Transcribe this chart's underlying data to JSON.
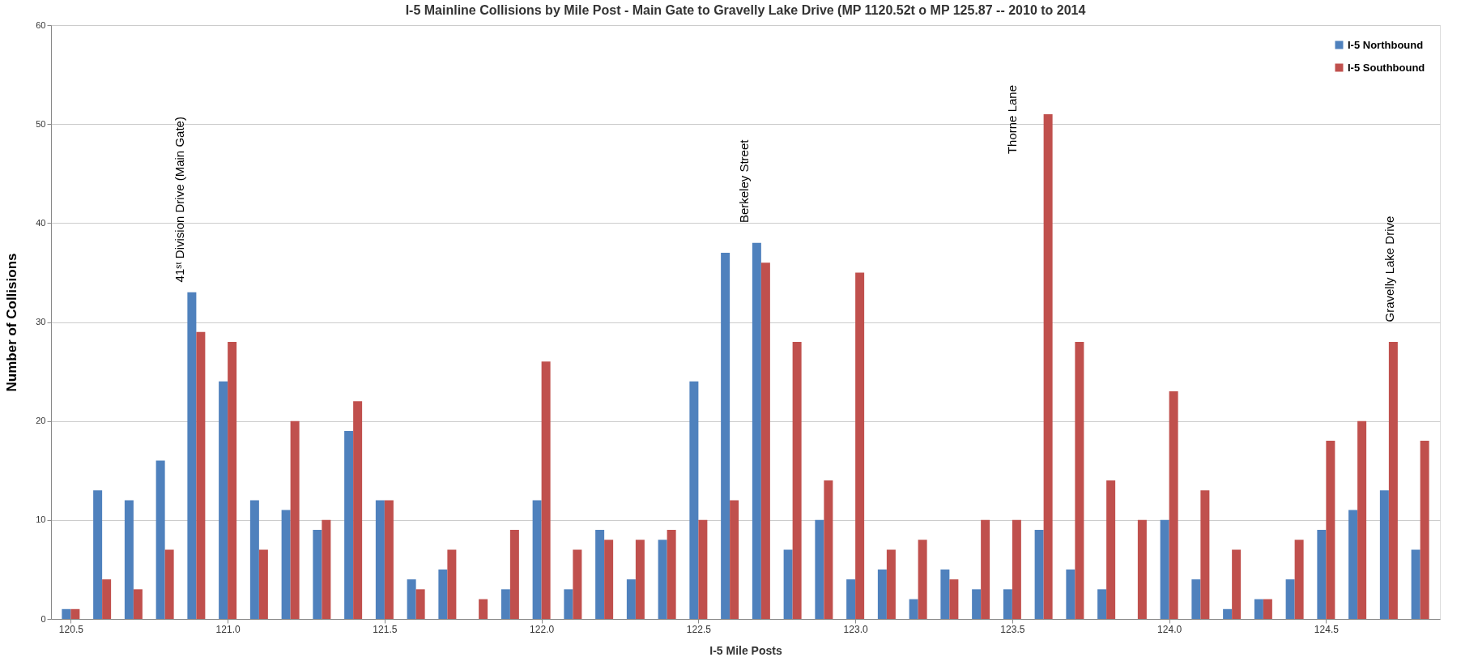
{
  "chart_data": {
    "type": "bar",
    "title": "I-5 Mainline Collisions by Mile Post - Main Gate to Gravelly Lake Drive  (MP 1120.52t o MP 125.87  --  2010 to 2014",
    "xlabel": "I-5 Mile Posts",
    "ylabel": "Number of Collisions",
    "x": [
      120.5,
      120.6,
      120.7,
      120.8,
      120.9,
      121.0,
      121.1,
      121.2,
      121.3,
      121.4,
      121.5,
      121.6,
      121.7,
      121.8,
      121.9,
      122.0,
      122.1,
      122.2,
      122.3,
      122.4,
      122.5,
      122.6,
      122.7,
      122.8,
      122.9,
      123.0,
      123.1,
      123.2,
      123.3,
      123.4,
      123.5,
      123.6,
      123.7,
      123.8,
      123.9,
      124.0,
      124.1,
      124.2,
      124.3,
      124.4,
      124.5,
      124.6,
      124.7,
      124.8
    ],
    "series": [
      {
        "name": "I-5 Northbound",
        "color": "#4f81bd",
        "values": [
          1,
          13,
          12,
          16,
          33,
          24,
          12,
          11,
          9,
          19,
          12,
          4,
          5,
          null,
          3,
          12,
          3,
          9,
          4,
          8,
          24,
          37,
          38,
          7,
          10,
          4,
          5,
          2,
          5,
          3,
          3,
          9,
          5,
          3,
          null,
          10,
          4,
          1,
          2,
          4,
          9,
          11,
          13,
          7
        ]
      },
      {
        "name": "I-5 Southbound",
        "color": "#c0504d",
        "values": [
          1,
          4,
          3,
          7,
          29,
          28,
          7,
          20,
          10,
          22,
          12,
          3,
          7,
          2,
          9,
          26,
          7,
          8,
          8,
          9,
          10,
          12,
          36,
          28,
          14,
          35,
          7,
          8,
          4,
          10,
          10,
          51,
          28,
          14,
          10,
          23,
          13,
          7,
          2,
          8,
          18,
          20,
          28,
          18
        ]
      }
    ],
    "xlim": [
      120.45,
      124.85
    ],
    "xticks": [
      120.5,
      {
        "value": 121,
        "label": "121.0"
      },
      121.5,
      {
        "value": 122,
        "label": "122.0"
      },
      122.5,
      {
        "value": 123,
        "label": "123.0"
      },
      123.5,
      {
        "value": 124,
        "label": "124.0"
      },
      124.5
    ],
    "ylim": [
      0,
      60
    ],
    "yticks": [
      0,
      10,
      20,
      30,
      40,
      50,
      60
    ],
    "grid": "y",
    "legend": "top right",
    "annotations": [
      "41ˢᵗ Division Drive (Main Gate)",
      "Berkeley Street",
      "Thorne Lane",
      "Gravelly Lake Drive"
    ]
  }
}
